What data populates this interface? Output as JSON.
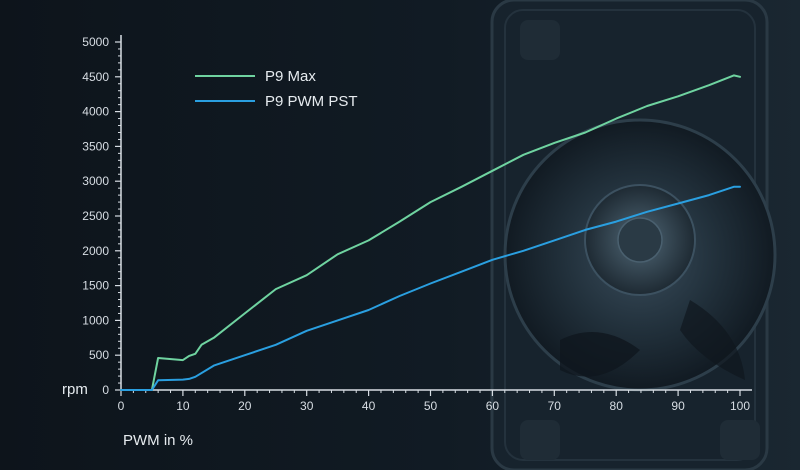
{
  "chart_data": {
    "type": "line",
    "xlabel": "PWM in %",
    "ylabel": "rpm",
    "xlim": [
      0,
      100
    ],
    "ylim": [
      0,
      5000
    ],
    "x_ticks": [
      "0",
      "10",
      "20",
      "30",
      "40",
      "50",
      "60",
      "70",
      "80",
      "90",
      "100"
    ],
    "y_ticks": [
      "0",
      "500",
      "1000",
      "1500",
      "2000",
      "2500",
      "3000",
      "3500",
      "4000",
      "4500",
      "5000"
    ],
    "grid": false,
    "legend_position": "top-left",
    "background": "dark photo of a computer fan",
    "series": [
      {
        "name": "P9 Max",
        "color": "#6fd3a0",
        "x": [
          0,
          5,
          6,
          10,
          11,
          12,
          13,
          15,
          20,
          25,
          30,
          35,
          40,
          45,
          50,
          55,
          60,
          65,
          70,
          75,
          80,
          85,
          90,
          95,
          99,
          100
        ],
        "values": [
          0,
          0,
          460,
          430,
          490,
          520,
          650,
          750,
          1100,
          1450,
          1650,
          1950,
          2150,
          2420,
          2700,
          2920,
          3150,
          3380,
          3550,
          3700,
          3900,
          4080,
          4220,
          4380,
          4520,
          4500
        ]
      },
      {
        "name": "P9 PWM PST",
        "color": "#2a9fe0",
        "x": [
          0,
          5,
          6,
          10,
          11,
          12,
          15,
          20,
          25,
          30,
          35,
          40,
          45,
          50,
          55,
          60,
          65,
          70,
          75,
          80,
          85,
          90,
          95,
          99,
          100
        ],
        "values": [
          0,
          0,
          140,
          150,
          160,
          190,
          350,
          500,
          650,
          850,
          1000,
          1150,
          1350,
          1530,
          1700,
          1870,
          2000,
          2150,
          2300,
          2420,
          2560,
          2680,
          2800,
          2920,
          2920
        ]
      }
    ]
  }
}
